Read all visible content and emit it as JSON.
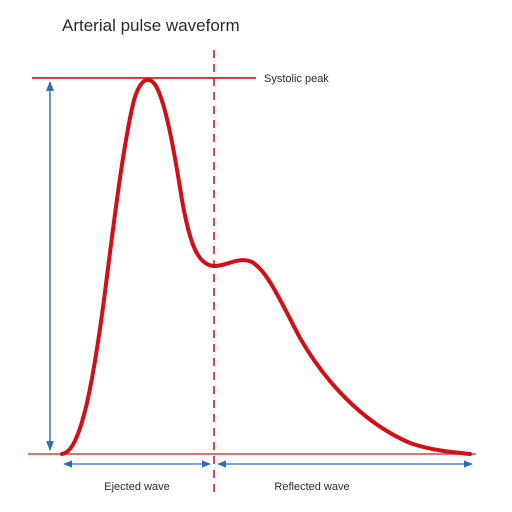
{
  "title": "Arterial pulse waveform",
  "annotations": {
    "peak_line_label": "Systolic peak",
    "left_segment_label": "Ejected wave",
    "right_segment_label": "Reflected wave"
  },
  "colors": {
    "waveform": "#d20f14",
    "reference_line": "#e03c40",
    "arrow": "#2f6db5",
    "text": "#2b2b2b"
  },
  "icons": [
    "double-headed-arrow",
    "dashed-divider"
  ]
}
